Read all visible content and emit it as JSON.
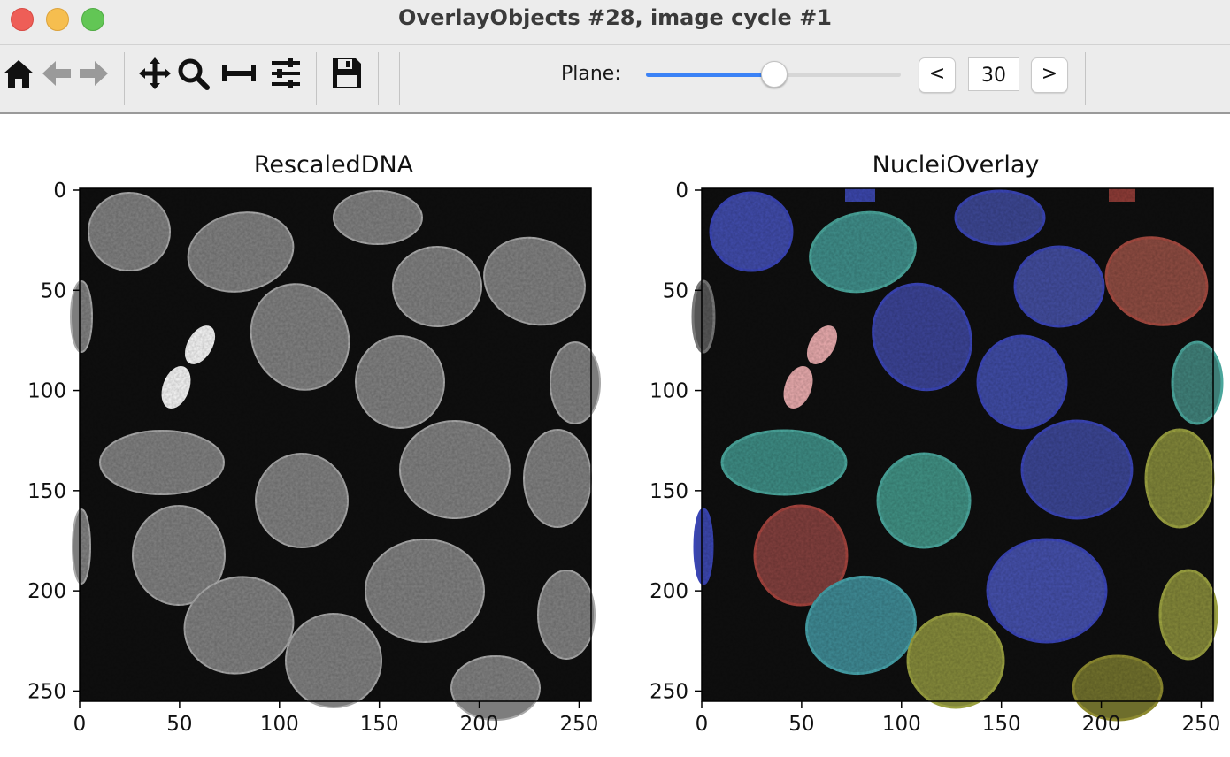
{
  "window": {
    "title": "OverlayObjects #28, image cycle #1"
  },
  "toolbar": {
    "icons": [
      "home-icon",
      "back-arrow-icon",
      "forward-arrow-icon",
      "pan-icon",
      "zoom-icon",
      "subplots-icon",
      "configure-icon",
      "save-icon"
    ],
    "plane_label": "Plane:",
    "plane_value": "30",
    "plane_fraction": 0.5,
    "prev_label": "<",
    "next_label": ">"
  },
  "plots": [
    {
      "title": "RescaledDNA",
      "x_ticks": [
        "0",
        "50",
        "100",
        "150",
        "200",
        "250"
      ],
      "y_ticks": [
        "0",
        "50",
        "100",
        "150",
        "200",
        "250"
      ]
    },
    {
      "title": "NucleiOverlay",
      "x_ticks": [
        "0",
        "50",
        "100",
        "150",
        "200",
        "250"
      ],
      "y_ticks": [
        "0",
        "50",
        "100",
        "150",
        "200",
        "250"
      ]
    }
  ],
  "colors": {
    "overlay_blue": "#4a55c8",
    "overlay_teal": "#4ca69a",
    "overlay_red": "#b24a44",
    "overlay_olive": "#9aa140",
    "overlay_pink": "#e2a6a8",
    "slider_fill": "#3b82f6"
  }
}
